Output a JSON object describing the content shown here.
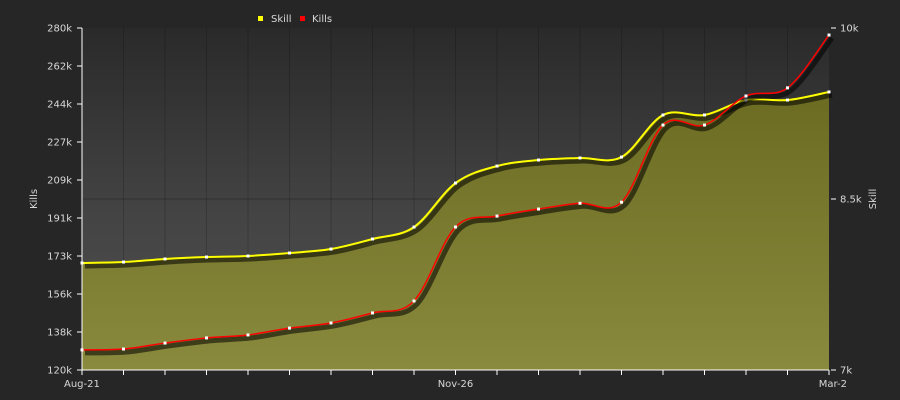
{
  "chart_data": {
    "type": "line",
    "legend": {
      "placement": "top-center",
      "entries": [
        "Skill",
        "Kills"
      ]
    },
    "x": [
      "Aug-21",
      "",
      "",
      "",
      "",
      "",
      "",
      "",
      "",
      "Nov-26",
      "",
      "",
      "",
      "",
      "",
      "",
      "",
      "",
      "Mar-2"
    ],
    "x_tick_labels": [
      "Aug-21",
      "Nov-26",
      "Mar-2"
    ],
    "y_left": {
      "label": "Kills",
      "range": [
        120000,
        280000
      ],
      "ticks": [
        "120k",
        "138k",
        "156k",
        "173k",
        "191k",
        "209k",
        "227k",
        "244k",
        "262k",
        "280k"
      ]
    },
    "y_right": {
      "label": "Skill",
      "range": [
        7000,
        10000
      ],
      "ticks": [
        "7k",
        "8.5k",
        "10k"
      ]
    },
    "series": [
      {
        "name": "Skill",
        "axis": "right",
        "color": "#ffff00",
        "fill": "#8a8a3a",
        "values": [
          7939,
          7947,
          7974,
          7991,
          8000,
          8026,
          8061,
          8149,
          8254,
          8640,
          8789,
          8842,
          8860,
          8868,
          9237,
          9237,
          9368,
          9368,
          9439
        ]
      },
      {
        "name": "Kills",
        "axis": "left",
        "color": "#ff0000",
        "values": [
          129400,
          129800,
          132600,
          135000,
          136400,
          139600,
          142000,
          146700,
          152300,
          186900,
          192000,
          195300,
          198000,
          198500,
          234600,
          234600,
          248200,
          252000,
          276700
        ]
      }
    ],
    "grid": {
      "vertical": true,
      "horizontal": false
    }
  }
}
